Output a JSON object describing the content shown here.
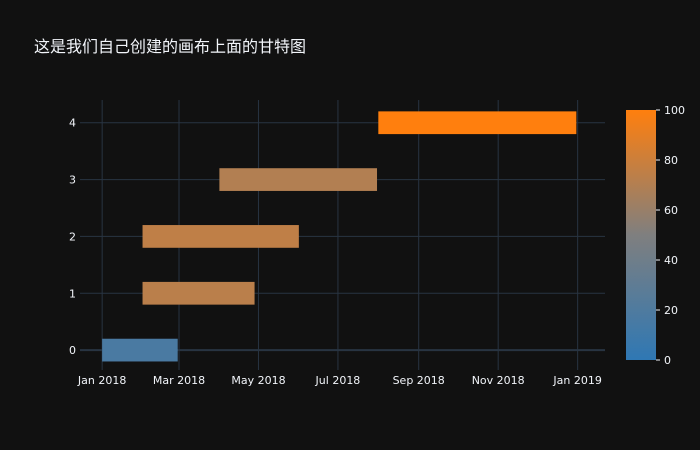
{
  "chart_data": {
    "type": "gantt",
    "title": "这是我们自己创建的画布上面的甘特图",
    "xlabel": "",
    "ylabel": "",
    "x_range": [
      "2017-12-15",
      "2019-01-22"
    ],
    "y_range": [
      -0.35,
      4.4
    ],
    "x_ticks": [
      {
        "date": "2018-01-01",
        "label": "Jan 2018"
      },
      {
        "date": "2018-03-01",
        "label": "Mar 2018"
      },
      {
        "date": "2018-05-01",
        "label": "May 2018"
      },
      {
        "date": "2018-07-01",
        "label": "Jul 2018"
      },
      {
        "date": "2018-09-01",
        "label": "Sep 2018"
      },
      {
        "date": "2018-11-01",
        "label": "Nov 2018"
      },
      {
        "date": "2019-01-01",
        "label": "Jan 2019"
      }
    ],
    "y_ticks": [
      0,
      1,
      2,
      3,
      4
    ],
    "tasks": [
      {
        "y": 0,
        "start": "2018-01-01",
        "finish": "2018-02-28",
        "value": 17
      },
      {
        "y": 1,
        "start": "2018-02-01",
        "finish": "2018-04-28",
        "value": 73
      },
      {
        "y": 2,
        "start": "2018-02-01",
        "finish": "2018-06-01",
        "value": 75
      },
      {
        "y": 3,
        "start": "2018-04-01",
        "finish": "2018-07-31",
        "value": 70
      },
      {
        "y": 4,
        "start": "2018-08-01",
        "finish": "2018-12-31",
        "value": 100
      }
    ],
    "colorbar": {
      "min": 0,
      "max": 100,
      "ticks": [
        0,
        20,
        40,
        60,
        80,
        100
      ],
      "colors": [
        "#2f78b4",
        "#7f7f7f",
        "#ff7f0e"
      ]
    },
    "grid": true,
    "colors": {
      "background": "#111111",
      "grid": "#283442",
      "text": "#f2f5fa"
    }
  }
}
